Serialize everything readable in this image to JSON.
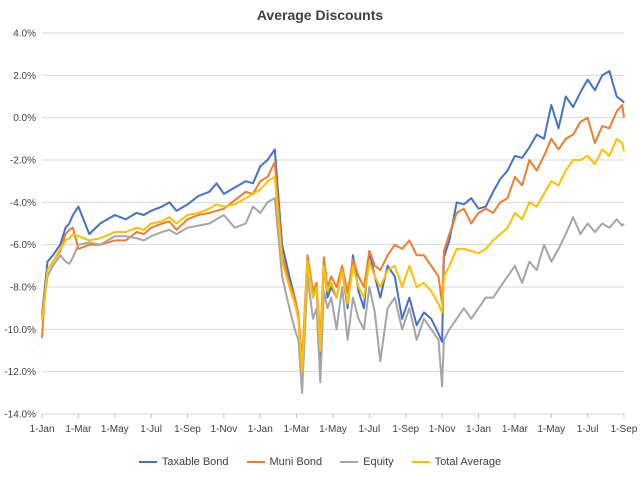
{
  "chart_data": {
    "type": "line",
    "title": "Average Discounts",
    "xlabel": "",
    "ylabel": "",
    "ylim": [
      -0.14,
      0.04
    ],
    "y_ticks": [
      "4.0%",
      "2.0%",
      "0.0%",
      "-2.0%",
      "-4.0%",
      "-6.0%",
      "-8.0%",
      "-10.0%",
      "-12.0%",
      "-14.0%"
    ],
    "y_tick_values": [
      0.04,
      0.02,
      0.0,
      -0.02,
      -0.04,
      -0.06,
      -0.08,
      -0.1,
      -0.12,
      -0.14
    ],
    "x_ticks": [
      "1-Jan",
      "1-Mar",
      "1-May",
      "1-Jul",
      "1-Sep",
      "1-Nov",
      "1-Jan",
      "1-Mar",
      "1-May",
      "1-Jul",
      "1-Sep",
      "1-Nov",
      "1-Jan",
      "1-Mar",
      "1-May",
      "1-Jul",
      "1-Sep"
    ],
    "grid": "horizontal",
    "legend_position": "bottom",
    "series": [
      {
        "name": "Taxable Bond",
        "color": "#4472C4",
        "x": [
          0,
          0.05,
          0.15,
          0.3,
          0.5,
          0.65,
          0.75,
          0.85,
          1,
          1.3,
          1.6,
          2,
          2.3,
          2.6,
          2.8,
          3,
          3.3,
          3.5,
          3.7,
          4,
          4.3,
          4.6,
          4.8,
          5,
          5.3,
          5.6,
          5.8,
          6,
          6.2,
          6.4,
          6.6,
          6.8,
          6.95,
          7.05,
          7.15,
          7.3,
          7.45,
          7.55,
          7.65,
          7.75,
          7.85,
          7.95,
          8.1,
          8.25,
          8.4,
          8.55,
          8.7,
          8.85,
          9,
          9.15,
          9.3,
          9.5,
          9.7,
          9.9,
          10.1,
          10.3,
          10.5,
          10.7,
          10.9,
          11,
          11.05,
          11.2,
          11.4,
          11.6,
          11.8,
          12,
          12.2,
          12.4,
          12.6,
          12.8,
          13,
          13.2,
          13.4,
          13.6,
          13.8,
          14,
          14.2,
          14.4,
          14.6,
          14.8,
          15,
          15.2,
          15.4,
          15.6,
          15.8,
          15.95,
          16
        ],
        "y": [
          -9.3,
          -8.5,
          -6.8,
          -6.5,
          -6.0,
          -5.2,
          -5.0,
          -4.6,
          -4.2,
          -5.5,
          -5.0,
          -4.6,
          -4.8,
          -4.5,
          -4.6,
          -4.4,
          -4.2,
          -4.0,
          -4.4,
          -4.1,
          -3.7,
          -3.5,
          -3.1,
          -3.6,
          -3.3,
          -3.0,
          -3.1,
          -2.3,
          -2.0,
          -1.5,
          -6.0,
          -7.5,
          -8.5,
          -9.5,
          -12.0,
          -6.8,
          -8.5,
          -8.0,
          -11.9,
          -6.8,
          -8.5,
          -8.0,
          -8.5,
          -7.2,
          -9.0,
          -6.5,
          -8.2,
          -9.0,
          -6.3,
          -7.5,
          -8.5,
          -7.0,
          -7.5,
          -9.5,
          -8.5,
          -9.8,
          -9.2,
          -9.5,
          -10.2,
          -10.6,
          -6.6,
          -5.8,
          -4.0,
          -4.1,
          -3.8,
          -4.3,
          -4.2,
          -3.5,
          -2.9,
          -2.5,
          -1.8,
          -1.9,
          -1.4,
          -0.8,
          -1.0,
          0.6,
          -0.5,
          1.0,
          0.5,
          1.2,
          1.8,
          1.3,
          2.0,
          2.2,
          1.0,
          0.8,
          0.7
        ]
      },
      {
        "name": "Muni Bond",
        "color": "#ED7D31",
        "x": [
          0,
          0.05,
          0.15,
          0.3,
          0.5,
          0.65,
          0.75,
          0.85,
          1,
          1.3,
          1.6,
          2,
          2.3,
          2.6,
          2.8,
          3,
          3.3,
          3.5,
          3.7,
          4,
          4.3,
          4.6,
          4.8,
          5,
          5.3,
          5.6,
          5.8,
          6,
          6.2,
          6.4,
          6.6,
          6.8,
          6.95,
          7.05,
          7.15,
          7.3,
          7.45,
          7.55,
          7.65,
          7.75,
          7.85,
          7.95,
          8.1,
          8.25,
          8.4,
          8.55,
          8.7,
          8.85,
          9,
          9.15,
          9.3,
          9.5,
          9.7,
          9.9,
          10.1,
          10.3,
          10.5,
          10.7,
          10.9,
          11,
          11.05,
          11.2,
          11.4,
          11.6,
          11.8,
          12,
          12.2,
          12.4,
          12.6,
          12.8,
          13,
          13.2,
          13.4,
          13.6,
          13.8,
          14,
          14.2,
          14.4,
          14.6,
          14.8,
          15,
          15.2,
          15.4,
          15.6,
          15.8,
          15.95,
          16
        ],
        "y": [
          -10.4,
          -9.0,
          -7.2,
          -6.8,
          -6.3,
          -5.5,
          -5.3,
          -5.2,
          -6.2,
          -6.0,
          -6.0,
          -5.8,
          -5.8,
          -5.4,
          -5.5,
          -5.2,
          -5.0,
          -4.9,
          -5.3,
          -4.8,
          -4.6,
          -4.5,
          -4.4,
          -4.3,
          -3.9,
          -3.5,
          -3.6,
          -3.0,
          -2.8,
          -2.1,
          -6.5,
          -7.8,
          -8.5,
          -9.3,
          -11.5,
          -6.5,
          -8.2,
          -7.8,
          -10.5,
          -6.6,
          -8.0,
          -7.5,
          -8.0,
          -7.0,
          -8.3,
          -6.7,
          -7.5,
          -8.0,
          -6.3,
          -7.0,
          -7.2,
          -6.5,
          -6.0,
          -6.2,
          -5.8,
          -6.5,
          -6.5,
          -7.0,
          -7.5,
          -8.8,
          -6.3,
          -5.5,
          -4.5,
          -4.3,
          -5.0,
          -4.5,
          -4.3,
          -4.5,
          -4.0,
          -3.8,
          -2.8,
          -3.2,
          -2.0,
          -2.5,
          -1.8,
          -1.0,
          -1.5,
          -1.0,
          -0.8,
          -0.2,
          0.0,
          -1.2,
          -0.4,
          -0.5,
          0.3,
          0.6,
          0.0
        ]
      },
      {
        "name": "Equity",
        "color": "#A5A5A5",
        "x": [
          0,
          0.05,
          0.15,
          0.3,
          0.5,
          0.65,
          0.75,
          0.85,
          1,
          1.3,
          1.6,
          2,
          2.3,
          2.6,
          2.8,
          3,
          3.3,
          3.5,
          3.7,
          4,
          4.3,
          4.6,
          4.8,
          5,
          5.3,
          5.6,
          5.8,
          6,
          6.2,
          6.4,
          6.6,
          6.8,
          6.95,
          7.05,
          7.15,
          7.3,
          7.45,
          7.55,
          7.65,
          7.75,
          7.85,
          7.95,
          8.1,
          8.25,
          8.4,
          8.55,
          8.7,
          8.85,
          9,
          9.15,
          9.3,
          9.5,
          9.7,
          9.9,
          10.1,
          10.3,
          10.5,
          10.7,
          10.9,
          11,
          11.05,
          11.2,
          11.4,
          11.6,
          11.8,
          12,
          12.2,
          12.4,
          12.6,
          12.8,
          13,
          13.2,
          13.4,
          13.6,
          13.8,
          14,
          14.2,
          14.4,
          14.6,
          14.8,
          15,
          15.2,
          15.4,
          15.6,
          15.8,
          15.95,
          16
        ],
        "y": [
          -9.5,
          -8.8,
          -7.5,
          -7.0,
          -6.5,
          -6.8,
          -6.9,
          -6.6,
          -6.0,
          -5.9,
          -6.0,
          -5.6,
          -5.6,
          -5.7,
          -5.8,
          -5.6,
          -5.4,
          -5.3,
          -5.5,
          -5.2,
          -5.1,
          -5.0,
          -4.8,
          -4.6,
          -5.2,
          -5.0,
          -4.2,
          -4.5,
          -4.0,
          -3.8,
          -7.5,
          -9.0,
          -10.0,
          -10.5,
          -13.0,
          -7.5,
          -9.5,
          -9.0,
          -12.5,
          -8.2,
          -9.0,
          -8.5,
          -10.0,
          -8.0,
          -10.5,
          -8.5,
          -9.5,
          -10.0,
          -8.0,
          -9.2,
          -11.5,
          -9.0,
          -8.5,
          -10.0,
          -9.0,
          -10.5,
          -9.5,
          -10.0,
          -10.5,
          -12.7,
          -10.5,
          -10.0,
          -9.5,
          -9.0,
          -9.5,
          -9.0,
          -8.5,
          -8.5,
          -8.0,
          -7.5,
          -7.0,
          -7.8,
          -6.8,
          -7.2,
          -6.0,
          -6.8,
          -6.2,
          -5.5,
          -4.7,
          -5.5,
          -5.0,
          -5.4,
          -5.0,
          -5.2,
          -4.8,
          -5.1,
          -5.0
        ]
      },
      {
        "name": "Total Average",
        "color": "#FFC000",
        "x": [
          0,
          0.05,
          0.15,
          0.3,
          0.5,
          0.65,
          0.75,
          0.85,
          1,
          1.3,
          1.6,
          2,
          2.3,
          2.6,
          2.8,
          3,
          3.3,
          3.5,
          3.7,
          4,
          4.3,
          4.6,
          4.8,
          5,
          5.3,
          5.6,
          5.8,
          6,
          6.2,
          6.4,
          6.6,
          6.8,
          6.95,
          7.05,
          7.15,
          7.3,
          7.45,
          7.55,
          7.65,
          7.75,
          7.85,
          7.95,
          8.1,
          8.25,
          8.4,
          8.55,
          8.7,
          8.85,
          9,
          9.15,
          9.3,
          9.5,
          9.7,
          9.9,
          10.1,
          10.3,
          10.5,
          10.7,
          10.9,
          11,
          11.05,
          11.2,
          11.4,
          11.6,
          11.8,
          12,
          12.2,
          12.4,
          12.6,
          12.8,
          13,
          13.2,
          13.4,
          13.6,
          13.8,
          14,
          14.2,
          14.4,
          14.6,
          14.8,
          15,
          15.2,
          15.4,
          15.6,
          15.8,
          15.95,
          16
        ],
        "y": [
          -9.6,
          -8.8,
          -7.2,
          -6.8,
          -6.2,
          -5.8,
          -5.7,
          -5.5,
          -5.6,
          -5.8,
          -5.7,
          -5.4,
          -5.4,
          -5.2,
          -5.3,
          -5.0,
          -4.9,
          -4.7,
          -5.0,
          -4.6,
          -4.5,
          -4.3,
          -4.1,
          -4.2,
          -4.1,
          -3.8,
          -3.6,
          -3.4,
          -3.0,
          -2.8,
          -6.8,
          -8.0,
          -8.8,
          -9.5,
          -12.0,
          -6.8,
          -8.5,
          -8.0,
          -11.0,
          -7.0,
          -8.2,
          -7.8,
          -8.5,
          -7.2,
          -8.8,
          -7.0,
          -8.0,
          -8.5,
          -6.8,
          -7.5,
          -8.0,
          -7.2,
          -7.0,
          -8.0,
          -7.0,
          -8.0,
          -7.8,
          -8.2,
          -8.8,
          -9.2,
          -7.5,
          -7.0,
          -6.2,
          -6.2,
          -6.3,
          -6.4,
          -6.2,
          -5.8,
          -5.5,
          -5.2,
          -4.5,
          -4.8,
          -4.0,
          -4.2,
          -3.6,
          -3.0,
          -3.2,
          -2.5,
          -2.0,
          -2.0,
          -1.8,
          -2.2,
          -1.5,
          -1.8,
          -1.0,
          -1.2,
          -1.6
        ]
      }
    ]
  }
}
